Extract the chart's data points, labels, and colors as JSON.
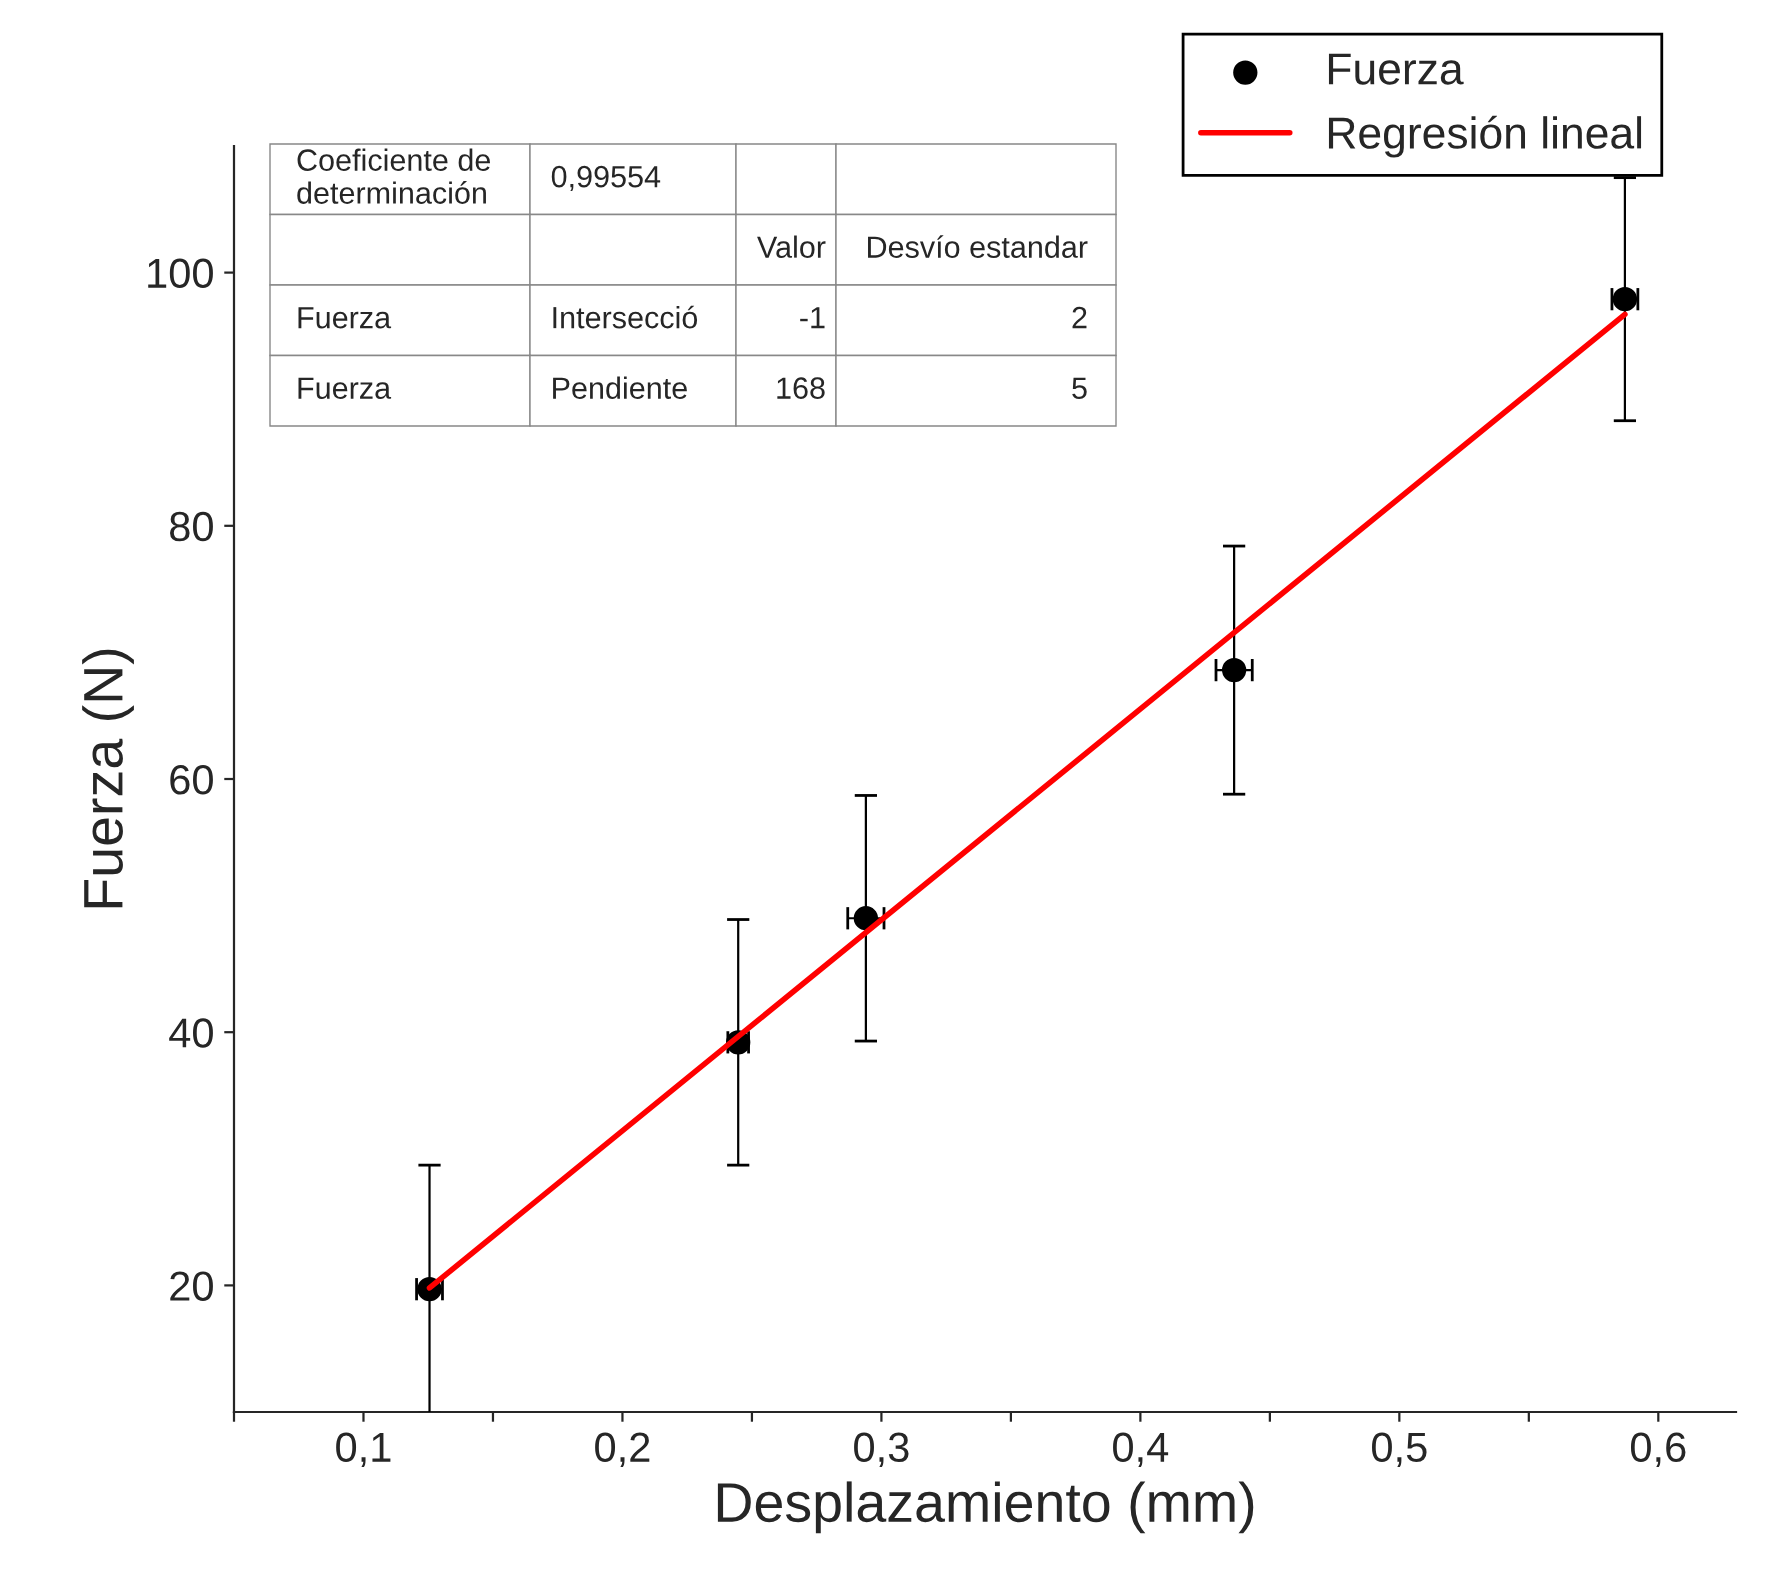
{
  "chart_data": {
    "type": "scatter",
    "xlabel": "Desplazamiento (mm)",
    "ylabel": "Fuerza (N)",
    "xlim": [
      0.05,
      0.63
    ],
    "ylim": [
      10,
      110
    ],
    "xticks": [
      {
        "value": 0.05,
        "label": null
      },
      {
        "value": 0.1,
        "label": "0,1"
      },
      {
        "value": 0.15,
        "label": null
      },
      {
        "value": 0.2,
        "label": "0,2"
      },
      {
        "value": 0.25,
        "label": null
      },
      {
        "value": 0.3,
        "label": "0,3"
      },
      {
        "value": 0.35,
        "label": null
      },
      {
        "value": 0.4,
        "label": "0,4"
      },
      {
        "value": 0.45,
        "label": null
      },
      {
        "value": 0.5,
        "label": "0,5"
      },
      {
        "value": 0.55,
        "label": null
      },
      {
        "value": 0.6,
        "label": "0,6"
      }
    ],
    "yticks": [
      20,
      40,
      60,
      80,
      100
    ],
    "grid": false,
    "legend": "top right",
    "marker": "circle",
    "series": [
      {
        "name": "Fuerza",
        "color": "#000000",
        "x": [
          0.1255,
          0.2447,
          0.294,
          0.4362,
          0.5871
        ],
        "values": [
          19.7,
          39.2,
          49.0,
          68.6,
          97.9
        ],
        "errors": [
          9.8,
          9.7,
          9.7,
          9.8,
          9.6
        ],
        "xerrors": [
          0.005,
          0.004,
          0.007,
          0.007,
          0.005
        ]
      },
      {
        "name": "Regresión lineal",
        "type": "line",
        "color": "#ff0000",
        "x": [
          0.1255,
          0.5871
        ],
        "values": [
          19.8,
          96.7
        ],
        "line_style": "solid",
        "marker": "none"
      }
    ],
    "annotations": [
      "Coeficiente de\ndeterminación",
      "0,99554",
      "Valor",
      "Desvío estandar",
      "Fuerza",
      "Intersecció",
      "-1",
      "2",
      "Fuerza",
      "Pendiente",
      "168",
      "5"
    ]
  }
}
